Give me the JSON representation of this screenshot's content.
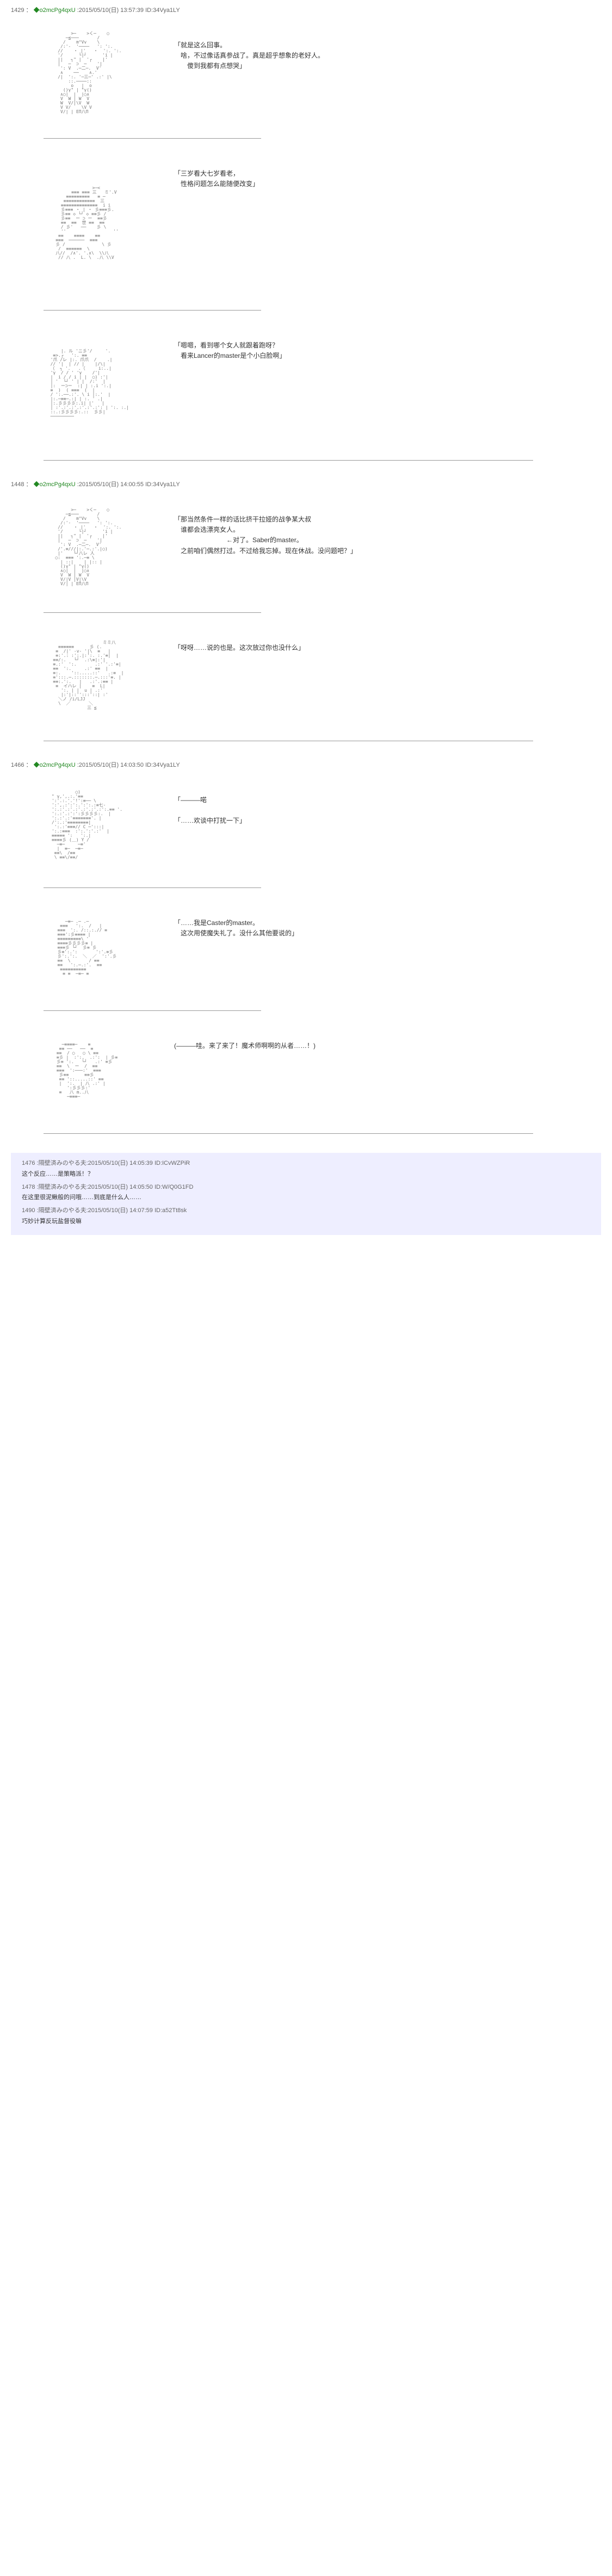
{
  "posts": [
    {
      "num": "1429",
      "trip": "◆o2mcPg4qxU",
      "date": ":2015/05/10(日) 13:57:39",
      "id": "ID:34Vya1LY",
      "blocks": [
        {
          "aa_height": 200,
          "aa_sample": "       >─    >く─    ○\n     ─≦───       /\n    /    m^Vv    \\\n   /:'-  '────   ': ':.\n  //    ・ |'   ・  ':. ':.\n  '/      └|┘      'i |\n  ||   ┐\" |  '┌    |'\n  |   ─  ⊃  ─    '|\n   ': V  .─二─.  V'\n   ∧    ──    ∧.'\n  /|  ':. '─三─' .:' |\\\n      ::.────::  \n       o   |  o\n    ()γ\" | \"γ()\n   ∧○|  |  |○∧\n   V  W | W  V\n   W  V/|\\V  W\n   V V/    \\V V\n   V/| | EΠ八Π",
          "text": "「就是这么回事。\n　啥，不过像话真参战了。真是超乎想象的老好人。\n　　傻到我都有点想哭」"
        },
        {
          "aa_height": 280,
          "aa_sample": "              >─<\n      ≡≡≡ ≡≡≡ 三   ミ'.V\n    ≡≡≡≡≡≡≡≡≡   ≡ ─\n   ≡≡≡≡≡≡≡≡≡≡≡≡  三\n  ≡≡≡≡≡≡≡≡≡≡≡≡≡≡  i i\n  彡≡≡≡ ・ | ・ 彡≡≡≡彡.\n  彡≡≡ ◇ └┘ ◇ ≡≡彡 /\n  彡≡≡  ー ⊃ ー  ≡≡彡\n  ≡≡  ≡≡  世 ≡≡  ≡≡\n  / 彡'   ──    彡 \\\n  ''                  ''\n ≡≡    ≡≡≡≡    ≡≡\n≡≡≡  ──────  ≡≡≡\n彡 /              \\ 彡\n /  ≡≡≡≡≡≡  \\\n八//  /∧'. '.∧\\  \\\\八\n // 八 .  L. \\  .八 \\\\V",
          "text": "「三岁看大七岁看老，\n　性格问题怎么能随便改变」"
        },
        {
          "aa_height": 240,
          "aa_sample": "      |. ル 'ニ彡'/     '.\n   ≡>.┌   ':. ≡≡      \n  '爪 /レ |:. 爪爪  /    .|\n  // '|  | // |    |/\\|\n  （  ┐ '.   .（     i:..|\n  'γ  / / ' 'γ    /'|\n  |  i / / i | |  ○) :'|\n  | '  └┘ ' | |  /:'  |\n  |:  ー⊃ー  :| | :.i ':.|\n  ≡  )  ( ≡≡≡  (  |\n  / ':.──.:'. \\ i |:.'  |\n  |:.─≡≡─.:| | :. ' .|\n  |:.彡彡彡彡:.i| |'   |\n  | :'.:'.:'.:'.:'.:': | ':. :.|\n  ::.:彡彡彡彡:.::  彡彡|\n  ─────────",
          "text": "「嗯嗯，看到哪个女人就跟着跑呀？\n　看来Lancer的master是个小白脸啊」"
        }
      ]
    },
    {
      "num": "1448",
      "trip": "◆o2mcPg4qxU",
      "date": ":2015/05/10(日) 14:00:55",
      "id": "ID:34Vya1LY",
      "blocks": [
        {
          "aa_height": 200,
          "aa_sample": "       >─    >く─    ○\n     ─≦───       /\n    /    m^Vv    \\\n   /:'-  '────   ': ':.\n  //    ・ |'   ・  ':. ':.\n  '/      └|┘      'i |\n  ||   ┐\" |  '┌    |'\n  |   ─  ⊃  ─    '|\n   ': V  .─二─.  V'\n  /'.≡///|:.'─.:'.|○)\n  |'    └┘八レ 人\n ○:  ≡≡≡ ':.─≡ \\\n   | ::|    | |:: |\n   ()γ\" | \"γ()\n   ∧○|  |  |○∧\n   V  W | W  V\n   V/|V |V|\\V\n   V/| | EΠ八Π",
          "text": "「那当然条件一样的话比挤干拉娅的战争某大叔\n　谁都会选漂亮女人。\n　　　　　　　　←对了。Saber的master。\n　之前咱们偶然打过。不过给我忘掉。现在休战。没问题吧？」"
        },
        {
          "aa_height": 200,
          "aa_sample": "                    ミミ八\n   ≡≡≡≡≡≡      彡 (.\n  ≡  /|' -v- '|\\  ≡   |\n  ≡:'.: :':.|:':. :.'≡|  |\n ≡≡/:.   └┘  .:\\≡|:'|\n ≡.:'  ':.       .:' '.:'≡|\n ≡≡  ':.     .:' ≡≡  |\n ≡:.    '::.....::'   .:≡  |\n ≡':::.─.:::::::.─.:::'≡. |\n ≡≡:.':.   |   .:'.:≡≡ |\n  ≡  イハレ |    ≡  L|\n    ':. | |  u | .:'\n    |:'|::'':::'::| :'\n   ＼ノ /i/LJJ\n   \\  ／       ＼\n              三 ≦",
          "text": "「呀呀……说的也是。这次放过你也没什么」"
        }
      ]
    },
    {
      "num": "1466",
      "trip": "◆o2mcPg4qxU",
      "date": ":2015/05/10(日) 14:03:50",
      "id": "ID:34Vya1LY",
      "blocks": [
        {
          "aa_height": 190,
          "aa_sample": "         ○)        \n\" γ,',.:.'≡≡       \n':'.:.'.'!':≡── \\     \n':',.:':':.':':.:≡七-    \n':.:'.:'.:'.:'.:'.:':.≡≡ '.\n':.:'.:':':彡彡彡彡:.  |\n':.:'.:'≡≡≡≡≡≡≡'. |\n/':.:'≡≡≡≡≡≡≡≡|\n ':.:'≡≡≡// C ─':::|\n':.:≡≡≡  :':.':'.:'  |\n≡≡≡≡≡ ':   ':.|\n≡≡≡≡彡 (＿) Y /\n  ─≡─     ─≡'\n  |  ≡─  ─≡─\n ≡≡\\  /≡≡\n \\ ≡≡\\/≡≡/",
          "text": "「———喏\n\n「……欢谈中打扰一下」"
        },
        {
          "aa_height": 190,
          "aa_sample": "   ─≡─ .─ .─\n ≡≡≡   ':.  /   |\n≡≡≡  ':. /::.:.// ≡\n≡≡≡':彡≡≡≡≡ |\n≡≡≡≡≡≡≡≡≡\\ '\n≡≡≡≡彡彡彡彡≡ |\n≡≡≡彡 └┘  彡≡ 彡\n彡≡':.':       ':'.≡彡\n彡':.':.  ＼  ／  ':'.彡\n≡≡  \\       / ≡≡\n≡≡   ':.─.:'.  ≡≡\n ≡≡≡≡≡≡≡≡≡≡\n  ≡ ≡  ─≡─ ≡",
          "text": "「……我是Caster的master。\n　这次用使魔失礼了。没什么其他要说的」"
        },
        {
          "aa_height": 190,
          "aa_sample": "  ─≡≡≡≡─    ≡\n ≡≡ ──   ──  ≡\n≡≡  / ○   ○ \\ ≡≡\n≡彡 |  :':.  .:':  | 彡≡\n彡≡ ':.   └┘   .:' ≡彡\n≡≡  \\  ー  /  ≡≡\n≡≡≡  ':───:'  ≡≡≡\n 彡≡≡      ≡≡彡\n ≡≡ '::.....::' ≡≡\n |  ':.  | 八 .:' |\n    ':彡彡彡:'\n ≡   八 m..八\n    ─≡≡≡─",
          "text": "(———哇。来了来了！魔术师啊啊的从者……！)"
        }
      ]
    }
  ],
  "responses": [
    {
      "num": "1476",
      "name": "隔壁済みのやる夫",
      "date": ":2015/05/10(日) 14:05:39",
      "id": "ID:ICvWZPiR",
      "text": "这个反应……是策略派！？"
    },
    {
      "num": "1478",
      "name": "隔壁済みのやる夫",
      "date": ":2015/05/10(日) 14:05:50",
      "id": "ID:W/Q0G1FD",
      "text": "在这里很泥鳅般的问哦……到底是什么人……"
    },
    {
      "num": "1490",
      "name": "隔壁済みのやる夫",
      "date": ":2015/05/10(日) 14:07:59",
      "id": "ID:a52Tt8sk",
      "text": "巧妙计算反玩盐督役嘛"
    }
  ],
  "colors": {
    "bg": "#ffffff",
    "text": "#333333",
    "meta": "#666666",
    "trip": "#228822",
    "response_bg": "#eeeeff"
  }
}
